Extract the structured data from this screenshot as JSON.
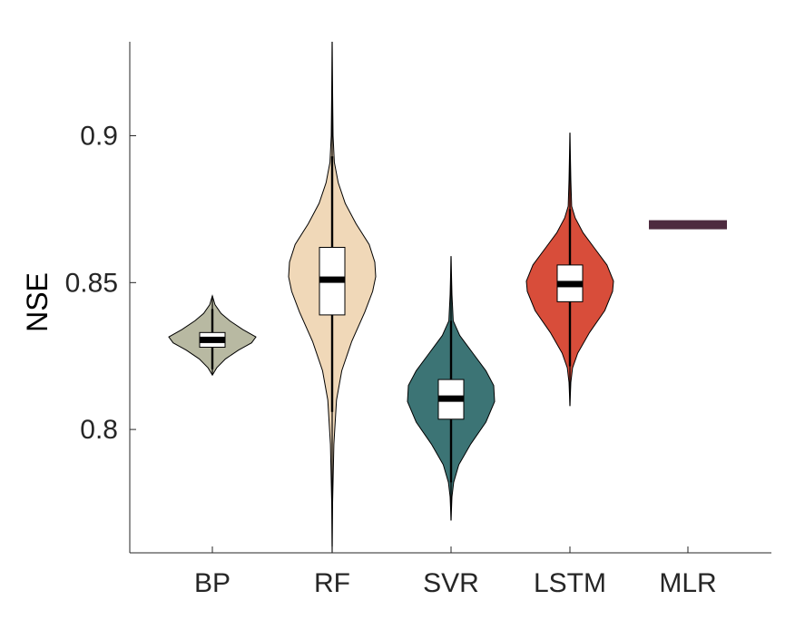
{
  "chart_data": {
    "type": "violin",
    "title": "",
    "xlabel": "",
    "ylabel": "NSE",
    "ylim": [
      0.758,
      0.932
    ],
    "yticks": [
      0.8,
      0.85,
      0.9
    ],
    "ytick_labels": [
      "0.8",
      "0.85",
      "0.9"
    ],
    "categories": [
      "BP",
      "RF",
      "SVR",
      "LSTM",
      "MLR"
    ],
    "grid": false,
    "series": [
      {
        "category": "BP",
        "color": "#B8B9A2",
        "min": 0.8185,
        "max": 0.8455,
        "q1": 0.828,
        "median": 0.8305,
        "q3": 0.833,
        "whisker_low": 0.8205,
        "whisker_high": 0.841,
        "density": [
          [
            0.8185,
            0.0
          ],
          [
            0.821,
            0.1
          ],
          [
            0.824,
            0.3
          ],
          [
            0.827,
            0.6
          ],
          [
            0.8295,
            0.9
          ],
          [
            0.8315,
            1.0
          ],
          [
            0.834,
            0.7
          ],
          [
            0.837,
            0.4
          ],
          [
            0.8395,
            0.2
          ],
          [
            0.8425,
            0.06
          ],
          [
            0.8455,
            0.0
          ]
        ]
      },
      {
        "category": "RF",
        "color": "#F0D8B8",
        "min": 0.758,
        "max": 0.932,
        "q1": 0.839,
        "median": 0.851,
        "q3": 0.862,
        "whisker_low": 0.806,
        "whisker_high": 0.893,
        "density": [
          [
            0.758,
            0.0
          ],
          [
            0.775,
            0.01
          ],
          [
            0.795,
            0.04
          ],
          [
            0.81,
            0.1
          ],
          [
            0.82,
            0.22
          ],
          [
            0.83,
            0.45
          ],
          [
            0.84,
            0.75
          ],
          [
            0.847,
            0.93
          ],
          [
            0.852,
            1.0
          ],
          [
            0.857,
            0.98
          ],
          [
            0.863,
            0.85
          ],
          [
            0.87,
            0.55
          ],
          [
            0.877,
            0.3
          ],
          [
            0.884,
            0.14
          ],
          [
            0.891,
            0.05
          ],
          [
            0.9,
            0.02
          ],
          [
            0.915,
            0.01
          ],
          [
            0.932,
            0.0
          ]
        ]
      },
      {
        "category": "SVR",
        "color": "#3C7475",
        "min": 0.769,
        "max": 0.859,
        "q1": 0.8035,
        "median": 0.8105,
        "q3": 0.817,
        "whisker_low": 0.782,
        "whisker_high": 0.837,
        "density": [
          [
            0.769,
            0.0
          ],
          [
            0.777,
            0.02
          ],
          [
            0.782,
            0.06
          ],
          [
            0.788,
            0.18
          ],
          [
            0.795,
            0.45
          ],
          [
            0.8025,
            0.8
          ],
          [
            0.8095,
            1.0
          ],
          [
            0.815,
            0.98
          ],
          [
            0.82,
            0.8
          ],
          [
            0.826,
            0.5
          ],
          [
            0.832,
            0.2
          ],
          [
            0.837,
            0.05
          ],
          [
            0.846,
            0.02
          ],
          [
            0.859,
            0.0
          ]
        ]
      },
      {
        "category": "LSTM",
        "color": "#D84D3A",
        "min": 0.808,
        "max": 0.901,
        "q1": 0.8435,
        "median": 0.8495,
        "q3": 0.856,
        "whisker_low": 0.8215,
        "whisker_high": 0.875,
        "density": [
          [
            0.808,
            0.0
          ],
          [
            0.816,
            0.02
          ],
          [
            0.821,
            0.06
          ],
          [
            0.826,
            0.18
          ],
          [
            0.833,
            0.45
          ],
          [
            0.8405,
            0.8
          ],
          [
            0.847,
            0.98
          ],
          [
            0.8505,
            1.0
          ],
          [
            0.856,
            0.85
          ],
          [
            0.862,
            0.55
          ],
          [
            0.867,
            0.3
          ],
          [
            0.872,
            0.12
          ],
          [
            0.876,
            0.04
          ],
          [
            0.885,
            0.02
          ],
          [
            0.901,
            0.0
          ]
        ]
      },
      {
        "category": "MLR",
        "color": "#4E2B3F",
        "constant_value": 0.8697
      }
    ]
  }
}
